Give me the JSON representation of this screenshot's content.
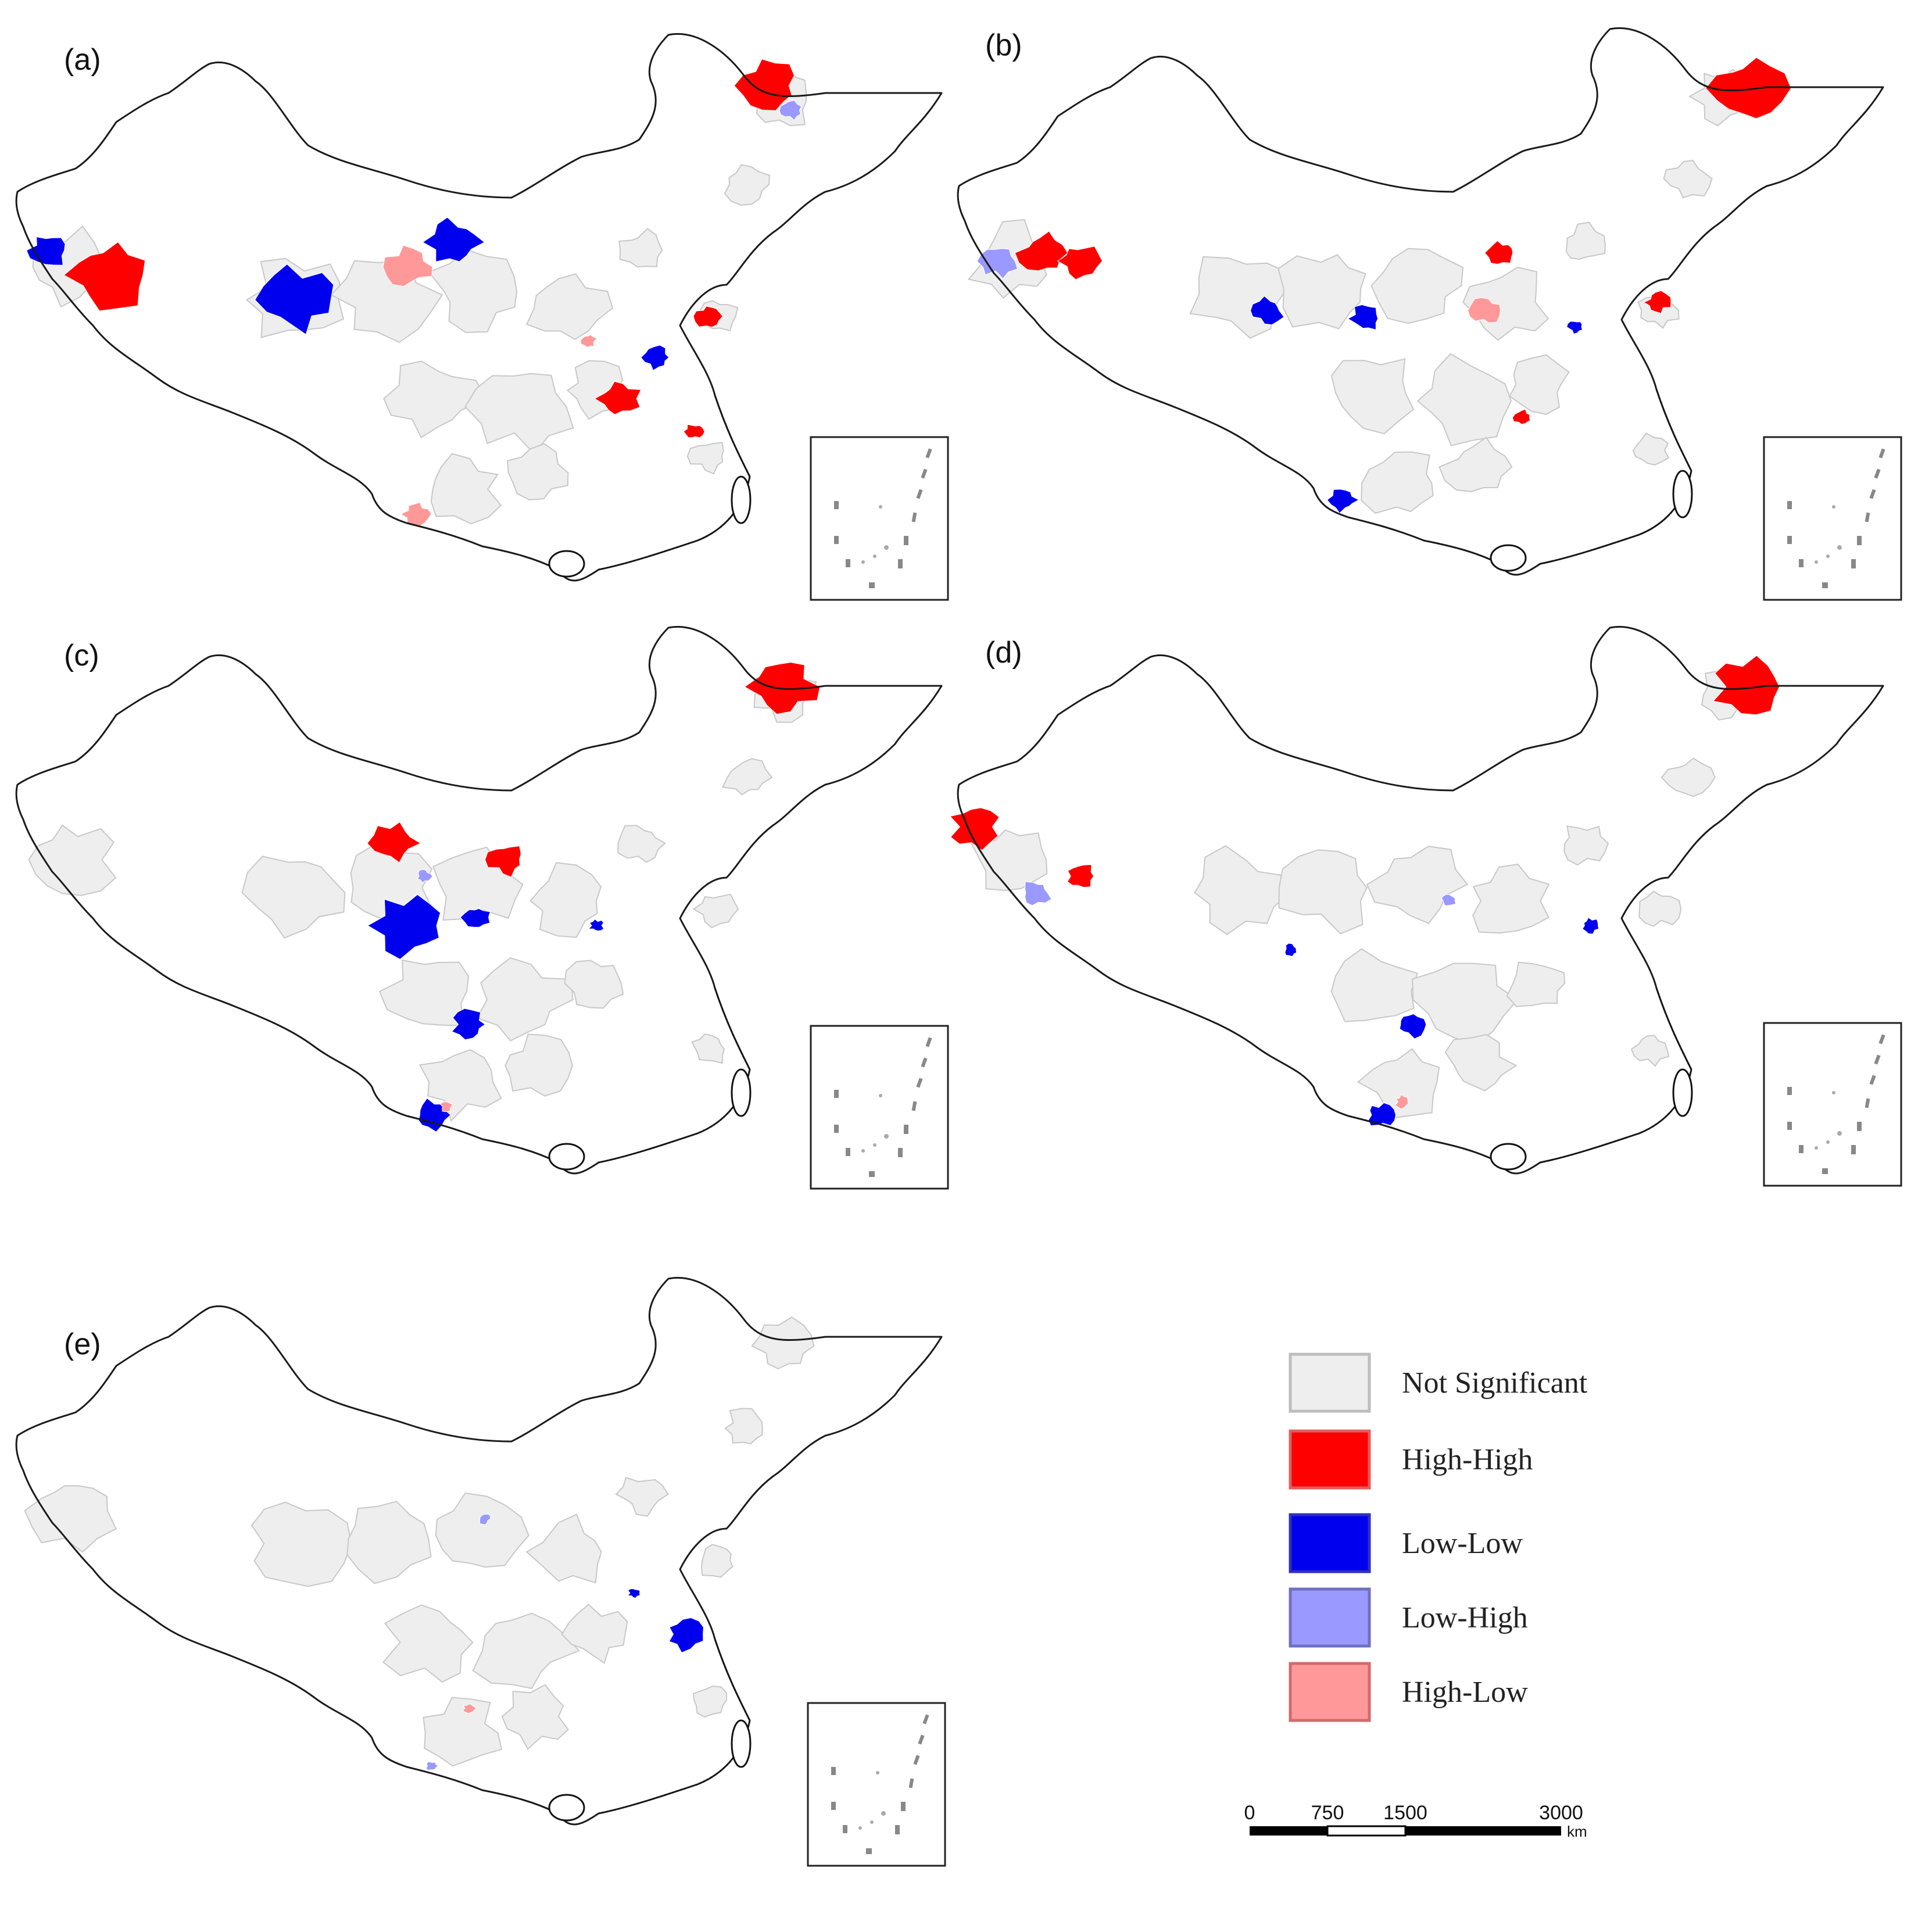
{
  "colors": {
    "not_significant": "#eeeeee",
    "high_high": "#ff0000",
    "low_low": "#0000ee",
    "low_high": "#9999ff",
    "high_low": "#ff9999",
    "outline": "#1a1a1a",
    "region_border": "#c8c8c8"
  },
  "panels": [
    {
      "label": "(a)",
      "clusters": [
        {
          "cat": "low_low",
          "lon": 75.5,
          "lat": 39.5,
          "r": 1.3
        },
        {
          "cat": "high_high",
          "lon": 79.5,
          "lat": 38.0,
          "r": 2.6
        },
        {
          "cat": "low_low",
          "lon": 92.0,
          "lat": 36.5,
          "r": 2.4
        },
        {
          "cat": "high_low",
          "lon": 99.5,
          "lat": 38.5,
          "r": 1.5
        },
        {
          "cat": "low_low",
          "lon": 102.5,
          "lat": 40.0,
          "r": 1.8
        },
        {
          "cat": "high_high",
          "lon": 123.5,
          "lat": 49.5,
          "r": 2.0
        },
        {
          "cat": "low_high",
          "lon": 125.0,
          "lat": 48.0,
          "r": 0.7
        },
        {
          "cat": "high_high",
          "lon": 113.5,
          "lat": 30.5,
          "r": 1.4
        },
        {
          "cat": "low_low",
          "lon": 116.0,
          "lat": 33.0,
          "r": 0.9
        },
        {
          "cat": "high_high",
          "lon": 119.5,
          "lat": 35.5,
          "r": 0.9
        },
        {
          "cat": "high_low",
          "lon": 100.0,
          "lat": 23.5,
          "r": 0.9
        },
        {
          "cat": "high_high",
          "lon": 118.5,
          "lat": 28.5,
          "r": 0.6
        },
        {
          "cat": "high_low",
          "lon": 111.5,
          "lat": 34.0,
          "r": 0.5
        }
      ]
    },
    {
      "label": "(b)",
      "clusters": [
        {
          "cat": "low_high",
          "lon": 76.0,
          "lat": 38.5,
          "r": 1.2
        },
        {
          "cat": "high_high",
          "lon": 79.0,
          "lat": 39.0,
          "r": 1.6
        },
        {
          "cat": "high_high",
          "lon": 81.5,
          "lat": 38.5,
          "r": 1.3
        },
        {
          "cat": "high_high",
          "lon": 126.0,
          "lat": 49.0,
          "r": 2.4
        },
        {
          "cat": "low_low",
          "lon": 94.0,
          "lat": 35.5,
          "r": 1.0
        },
        {
          "cat": "low_low",
          "lon": 100.5,
          "lat": 35.0,
          "r": 1.0
        },
        {
          "cat": "high_high",
          "lon": 109.5,
          "lat": 39.0,
          "r": 0.9
        },
        {
          "cat": "high_low",
          "lon": 108.5,
          "lat": 35.5,
          "r": 1.0
        },
        {
          "cat": "high_high",
          "lon": 120.0,
          "lat": 36.0,
          "r": 0.8
        },
        {
          "cat": "low_low",
          "lon": 99.0,
          "lat": 24.0,
          "r": 0.9
        },
        {
          "cat": "high_high",
          "lon": 111.0,
          "lat": 29.0,
          "r": 0.6
        },
        {
          "cat": "low_low",
          "lon": 114.5,
          "lat": 34.5,
          "r": 0.5
        }
      ]
    },
    {
      "label": "(c)",
      "clusters": [
        {
          "cat": "high_high",
          "lon": 124.5,
          "lat": 49.0,
          "r": 2.2
        },
        {
          "cat": "high_high",
          "lon": 98.5,
          "lat": 39.5,
          "r": 1.5
        },
        {
          "cat": "high_high",
          "lon": 106.0,
          "lat": 38.5,
          "r": 1.2
        },
        {
          "cat": "low_low",
          "lon": 99.5,
          "lat": 34.5,
          "r": 2.3
        },
        {
          "cat": "low_low",
          "lon": 104.0,
          "lat": 35.0,
          "r": 0.9
        },
        {
          "cat": "low_low",
          "lon": 103.5,
          "lat": 28.5,
          "r": 1.1
        },
        {
          "cat": "low_low",
          "lon": 101.0,
          "lat": 23.0,
          "r": 1.2
        },
        {
          "cat": "low_high",
          "lon": 100.5,
          "lat": 37.5,
          "r": 0.5
        },
        {
          "cat": "low_low",
          "lon": 112.0,
          "lat": 34.5,
          "r": 0.5
        },
        {
          "cat": "high_low",
          "lon": 102.0,
          "lat": 23.5,
          "r": 0.4
        }
      ]
    },
    {
      "label": "(d)",
      "clusters": [
        {
          "cat": "high_high",
          "lon": 74.5,
          "lat": 40.5,
          "r": 1.6
        },
        {
          "cat": "low_high",
          "lon": 78.5,
          "lat": 36.5,
          "r": 1.0
        },
        {
          "cat": "high_high",
          "lon": 81.5,
          "lat": 37.5,
          "r": 1.0
        },
        {
          "cat": "high_high",
          "lon": 126.0,
          "lat": 49.0,
          "r": 2.2
        },
        {
          "cat": "low_low",
          "lon": 103.5,
          "lat": 28.5,
          "r": 1.0
        },
        {
          "cat": "low_low",
          "lon": 101.5,
          "lat": 23.0,
          "r": 0.9
        },
        {
          "cat": "high_low",
          "lon": 103.0,
          "lat": 23.8,
          "r": 0.5
        },
        {
          "cat": "low_low",
          "lon": 95.5,
          "lat": 33.0,
          "r": 0.5
        },
        {
          "cat": "low_low",
          "lon": 115.5,
          "lat": 34.5,
          "r": 0.6
        },
        {
          "cat": "low_high",
          "lon": 106.0,
          "lat": 36.0,
          "r": 0.5
        }
      ]
    },
    {
      "label": "(e)",
      "clusters": [
        {
          "cat": "low_low",
          "lon": 118.0,
          "lat": 31.0,
          "r": 1.3
        },
        {
          "cat": "low_low",
          "lon": 114.5,
          "lat": 33.5,
          "r": 0.4
        },
        {
          "cat": "low_high",
          "lon": 104.5,
          "lat": 38.0,
          "r": 0.4
        },
        {
          "cat": "low_high",
          "lon": 101.0,
          "lat": 23.0,
          "r": 0.4
        },
        {
          "cat": "high_low",
          "lon": 103.5,
          "lat": 26.5,
          "r": 0.4
        }
      ]
    }
  ],
  "legend": {
    "items": [
      {
        "key": "not_significant",
        "label": "Not Significant"
      },
      {
        "key": "high_high",
        "label": "High-High"
      },
      {
        "key": "low_low",
        "label": "Low-Low"
      },
      {
        "key": "low_high",
        "label": "Low-High"
      },
      {
        "key": "high_low",
        "label": "High-Low"
      }
    ]
  },
  "scale_bar": {
    "ticks": [
      "0",
      "750",
      "1500",
      "3000"
    ],
    "unit": "km"
  }
}
